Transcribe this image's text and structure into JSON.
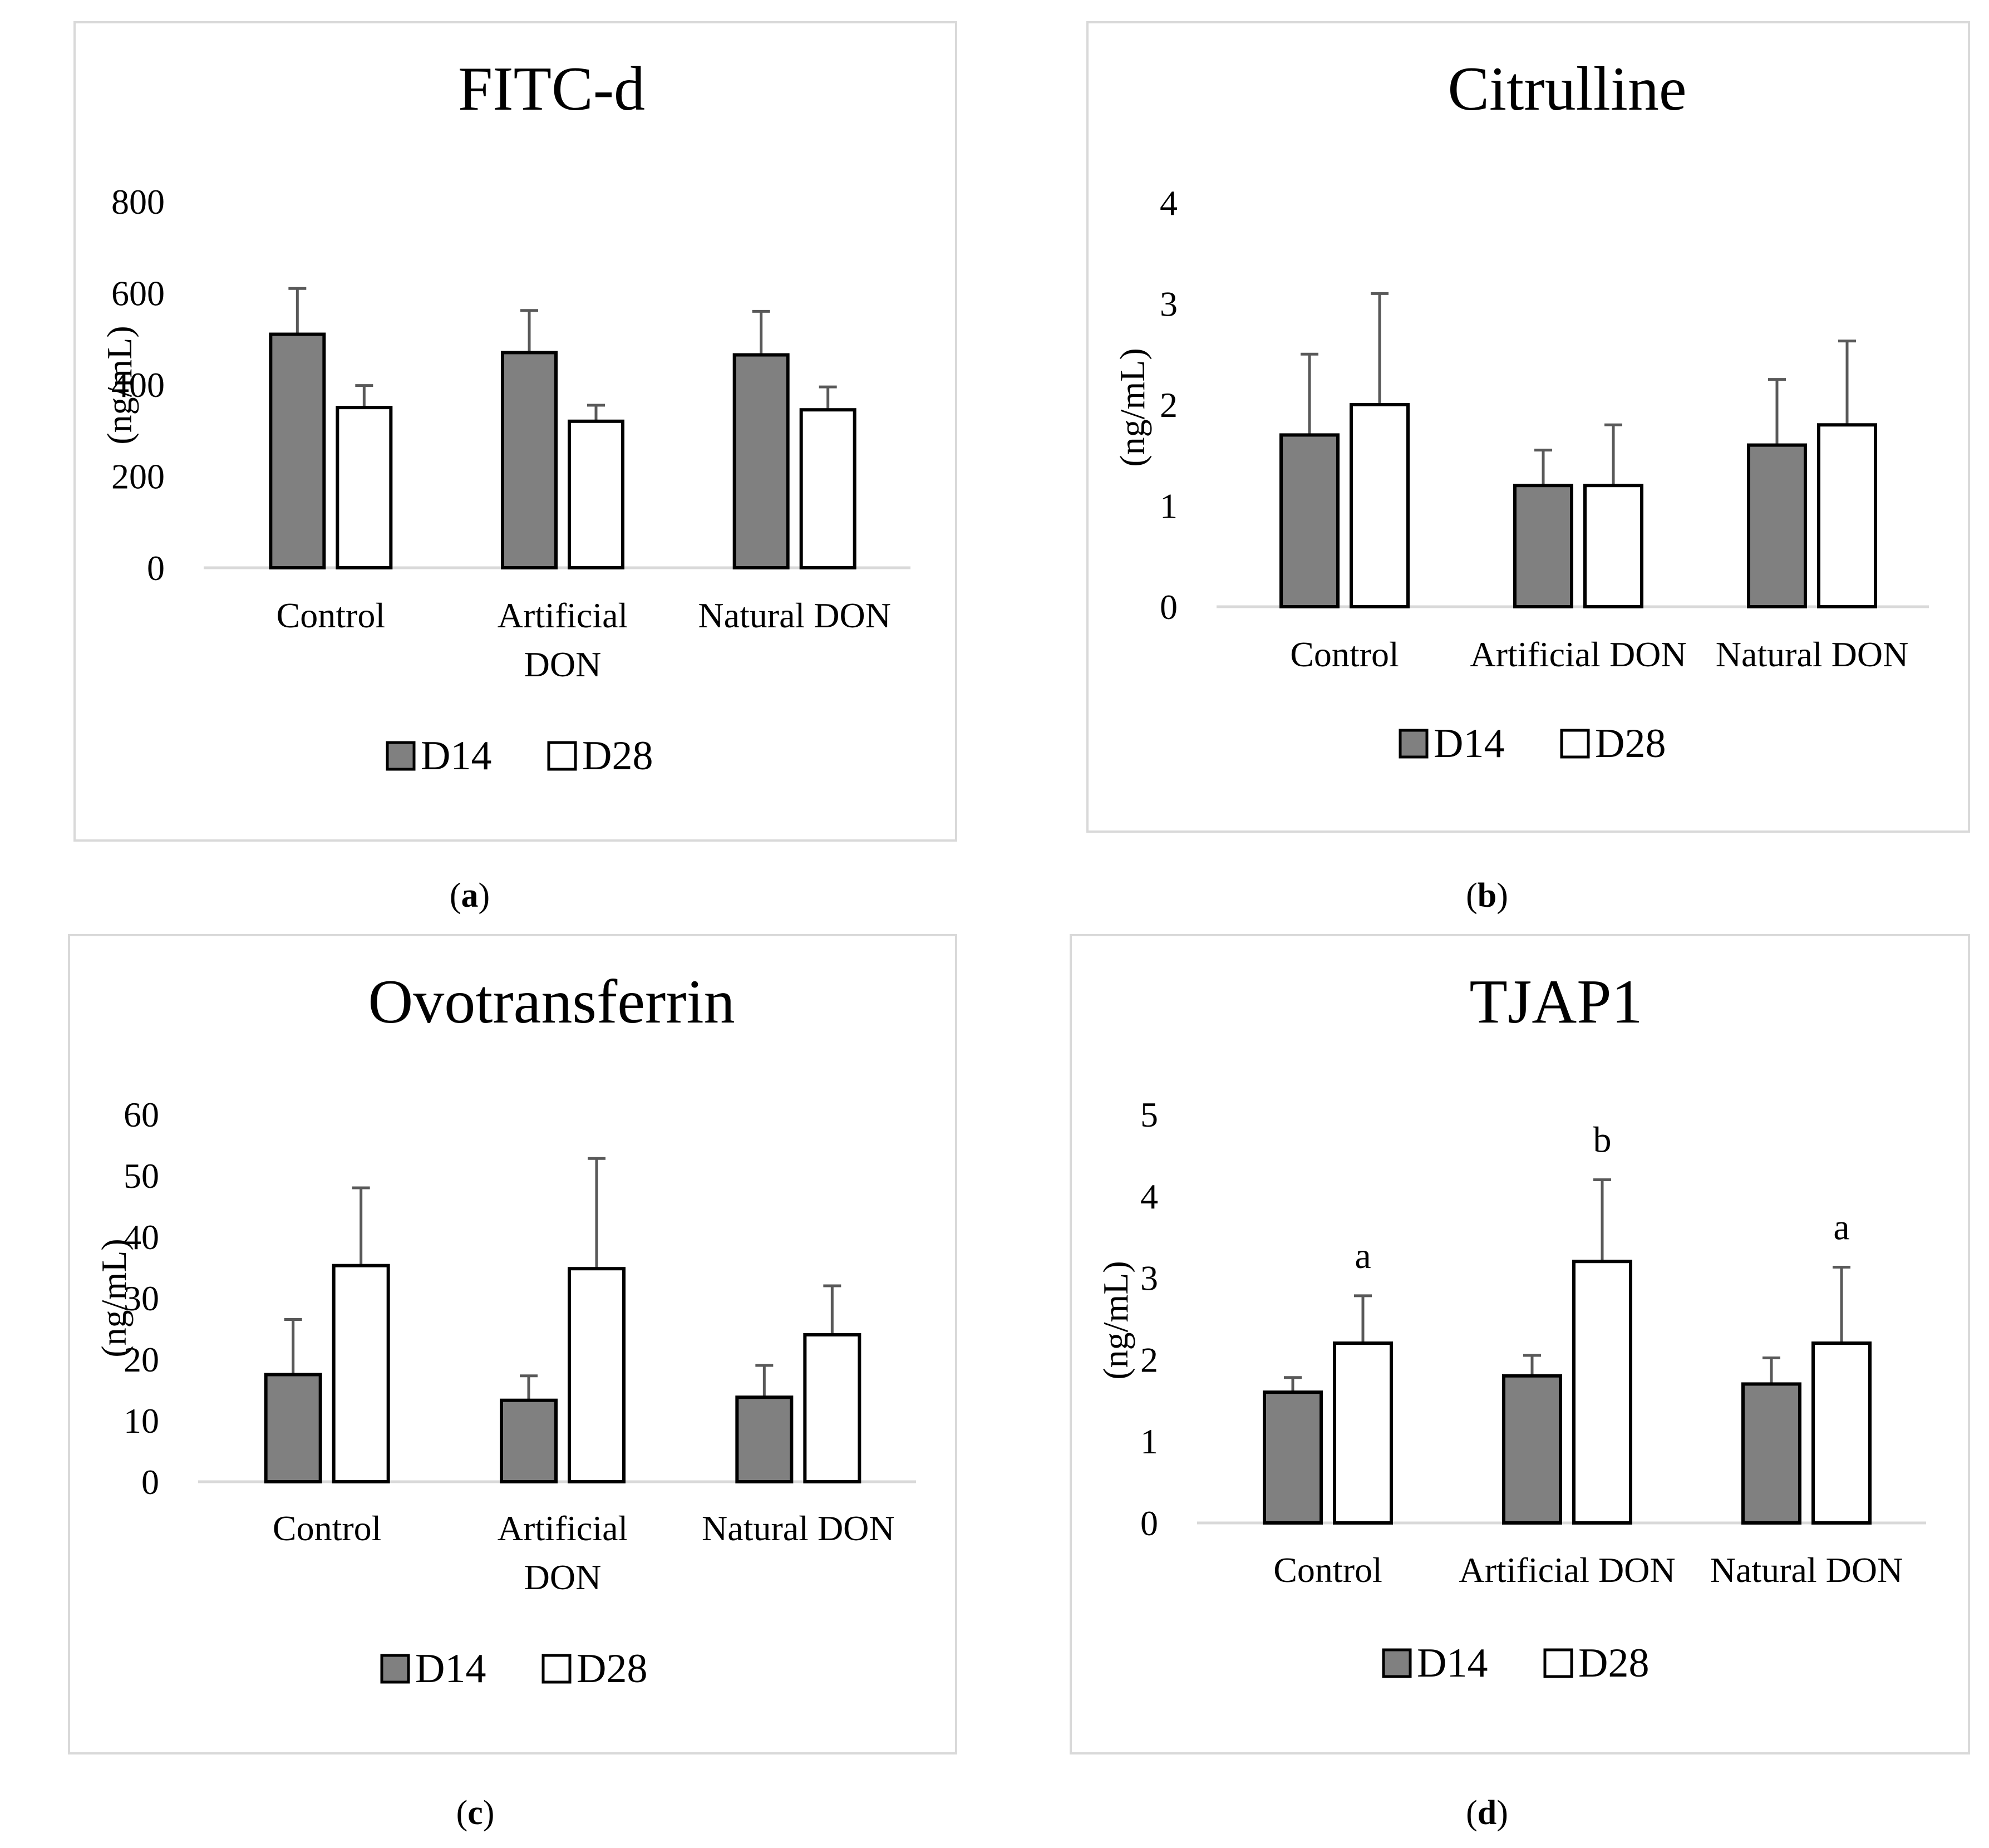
{
  "colors": {
    "d14": "#808080",
    "d28": "#ffffff",
    "stroke": "#000000",
    "axis": "#d9d9d9",
    "error": "#595959"
  },
  "chart_data": [
    {
      "type": "bar",
      "panel": "a",
      "title": "FITC-d",
      "ylabel": "(ng/mL)",
      "ylim": [
        0,
        800
      ],
      "yticks": [
        "0",
        "200",
        "400",
        "600",
        "800"
      ],
      "categories": [
        "Control",
        "Artificial DON",
        "Natural DON"
      ],
      "category_lines": [
        [
          "Control"
        ],
        [
          "Artificial",
          "DON"
        ],
        [
          "Natural DON"
        ]
      ],
      "series": [
        {
          "name": "D14",
          "values": [
            510,
            470,
            465
          ],
          "errors": [
            100,
            92,
            95
          ]
        },
        {
          "name": "D28",
          "values": [
            350,
            320,
            345
          ],
          "errors": [
            48,
            35,
            50
          ]
        }
      ],
      "annotations": []
    },
    {
      "type": "bar",
      "panel": "b",
      "title": "Citrulline",
      "ylabel": "(ng/mL)",
      "ylim": [
        0,
        4
      ],
      "yticks": [
        "0",
        "1",
        "2",
        "3",
        "4"
      ],
      "categories": [
        "Control",
        "Artificial DON",
        "Natural DON"
      ],
      "category_lines": [
        [
          "Control"
        ],
        [
          "Artificial DON"
        ],
        [
          "Natural DON"
        ]
      ],
      "series": [
        {
          "name": "D14",
          "values": [
            1.7,
            1.2,
            1.6
          ],
          "errors": [
            0.8,
            0.35,
            0.65
          ]
        },
        {
          "name": "D28",
          "values": [
            2.0,
            1.2,
            1.8
          ],
          "errors": [
            1.1,
            0.6,
            0.83
          ]
        }
      ],
      "annotations": []
    },
    {
      "type": "bar",
      "panel": "c",
      "title": "Ovotransferrin",
      "ylabel": "(ng/mL)",
      "ylim": [
        0,
        60
      ],
      "yticks": [
        "0",
        "10",
        "20",
        "30",
        "40",
        "50",
        "60"
      ],
      "categories": [
        "Control",
        "Artificial DON",
        "Natural DON"
      ],
      "category_lines": [
        [
          "Control"
        ],
        [
          "Artificial",
          "DON"
        ],
        [
          "Natural DON"
        ]
      ],
      "series": [
        {
          "name": "D14",
          "values": [
            17.5,
            13.3,
            13.8
          ],
          "errors": [
            9.0,
            4.0,
            5.2
          ]
        },
        {
          "name": "D28",
          "values": [
            35.3,
            34.8,
            24.0
          ],
          "errors": [
            12.7,
            18.0,
            8.0
          ]
        }
      ],
      "annotations": []
    },
    {
      "type": "bar",
      "panel": "d",
      "title": "TJAP1",
      "ylabel": "(ng/mL)",
      "ylim": [
        0,
        5
      ],
      "yticks": [
        "0",
        "1",
        "2",
        "3",
        "4",
        "5"
      ],
      "categories": [
        "Control",
        "Artificial DON",
        "Natural DON"
      ],
      "category_lines": [
        [
          "Control"
        ],
        [
          "Artificial DON"
        ],
        [
          "Natural DON"
        ]
      ],
      "series": [
        {
          "name": "D14",
          "values": [
            1.6,
            1.8,
            1.7
          ],
          "errors": [
            0.18,
            0.25,
            0.32
          ]
        },
        {
          "name": "D28",
          "values": [
            2.2,
            3.2,
            2.2
          ],
          "errors": [
            0.58,
            1.0,
            0.93
          ]
        }
      ],
      "annotations": [
        "a",
        "b",
        "a"
      ]
    }
  ],
  "legend": {
    "d14": "D14",
    "d28": "D28"
  },
  "captions": [
    "a",
    "b",
    "c",
    "d"
  ]
}
